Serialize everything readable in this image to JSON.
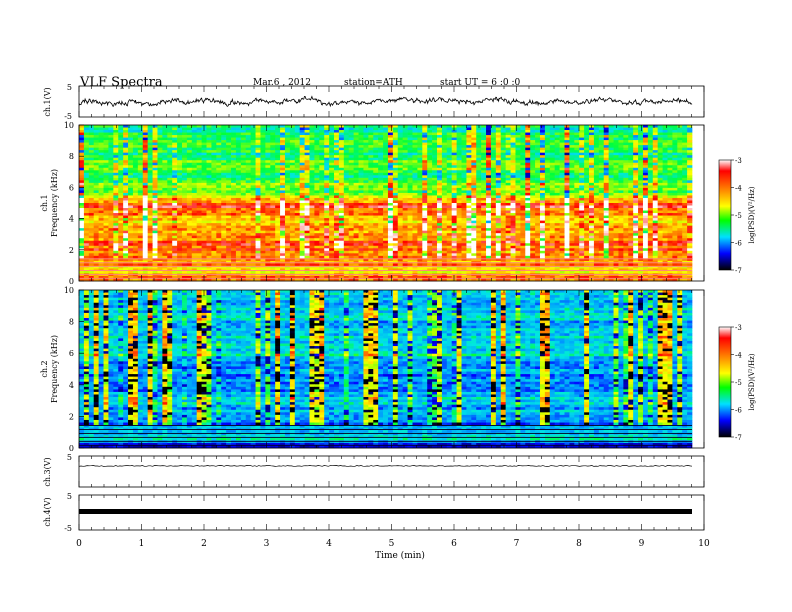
{
  "header": {
    "title": "VLF  Spectra",
    "date": "Mar.6  , 2012",
    "station": "station=ATH",
    "start": "start  UT  =   6  :0  :0"
  },
  "colorbar": {
    "label": "log(PSD)(V²/Hz)",
    "ticks": [
      "-3",
      "-4",
      "-5",
      "-6",
      "-7"
    ]
  },
  "chart_data": [
    {
      "type": "line",
      "panel": "ch1-waveform",
      "ylabel": "ch.1(V)",
      "ylim": [
        -5,
        5
      ],
      "yticks": [
        "5",
        "-5"
      ],
      "xlim": [
        0,
        10
      ],
      "data_extent_min": [
        0,
        9.8
      ],
      "note_values_range": [
        -1.5,
        1.5
      ]
    },
    {
      "type": "heatmap",
      "panel": "ch1-spectrogram",
      "ylabel": "ch.1\nFrequency  (kHz)",
      "ylabel_line1": "ch.1",
      "ylabel_line2": "Frequency  (kHz)",
      "ylim": [
        0,
        10
      ],
      "yticks": [
        "0",
        "2",
        "4",
        "6",
        "8",
        "10"
      ],
      "xlim": [
        0,
        10
      ],
      "zlim": [
        -7,
        -3
      ],
      "band_profile_khz": [
        [
          0.0,
          -3.6
        ],
        [
          0.5,
          -4.2
        ],
        [
          1.0,
          -4.0
        ],
        [
          1.5,
          -3.9
        ],
        [
          2.0,
          -3.8
        ],
        [
          2.5,
          -3.7
        ],
        [
          3.0,
          -3.9
        ],
        [
          3.5,
          -4.1
        ],
        [
          4.0,
          -4.2
        ],
        [
          4.5,
          -3.6
        ],
        [
          5.0,
          -3.8
        ],
        [
          5.5,
          -4.6
        ],
        [
          6.0,
          -4.8
        ],
        [
          6.5,
          -5.0
        ],
        [
          7.0,
          -4.9
        ],
        [
          8.0,
          -5.0
        ],
        [
          9.0,
          -5.1
        ],
        [
          10.0,
          -5.1
        ]
      ]
    },
    {
      "type": "heatmap",
      "panel": "ch2-spectrogram",
      "ylabel_line1": "ch.2",
      "ylabel_line2": "Frequency  (kHz)",
      "ylim": [
        0,
        10
      ],
      "yticks": [
        "0",
        "2",
        "4",
        "6",
        "8",
        "10"
      ],
      "xlim": [
        0,
        10
      ],
      "zlim": [
        -7,
        -3
      ],
      "band_profile_khz": [
        [
          0.0,
          -6.8
        ],
        [
          0.5,
          -5.3
        ],
        [
          1.0,
          -5.5
        ],
        [
          1.5,
          -5.9
        ],
        [
          2.0,
          -6.0
        ],
        [
          2.5,
          -5.6
        ],
        [
          3.0,
          -5.4
        ],
        [
          3.5,
          -5.8
        ],
        [
          4.0,
          -5.9
        ],
        [
          4.5,
          -5.9
        ],
        [
          5.0,
          -5.7
        ],
        [
          5.5,
          -5.8
        ],
        [
          6.0,
          -5.2
        ],
        [
          6.5,
          -5.6
        ],
        [
          7.0,
          -5.5
        ],
        [
          8.0,
          -5.6
        ],
        [
          9.0,
          -5.5
        ],
        [
          10.0,
          -5.6
        ]
      ]
    },
    {
      "type": "line",
      "panel": "ch3-waveform",
      "ylabel": "ch.3(V)",
      "ylim": [
        -5,
        5
      ],
      "yticks": [
        "5"
      ],
      "xlim": [
        0,
        10
      ]
    },
    {
      "type": "line",
      "panel": "ch4-waveform",
      "ylabel": "ch.4(V)",
      "ylim": [
        -5,
        5
      ],
      "yticks": [
        "5",
        "-5"
      ],
      "xlim": [
        0,
        10
      ],
      "xlabel": "Time  (min)",
      "xticks": [
        "0",
        "1",
        "2",
        "3",
        "4",
        "5",
        "6",
        "7",
        "8",
        "9",
        "10"
      ]
    }
  ]
}
